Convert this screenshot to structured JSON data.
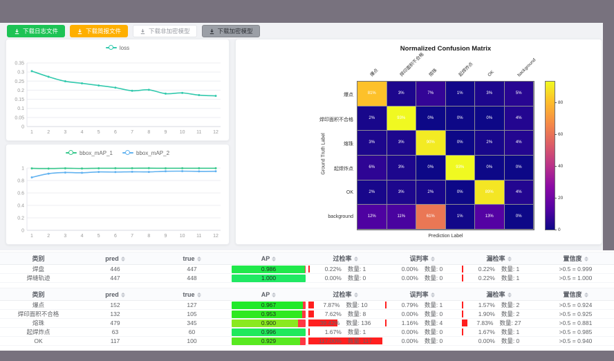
{
  "toolbar": {
    "buttons": [
      {
        "id": "download-log",
        "label": "下载日志文件",
        "style": "green"
      },
      {
        "id": "download-report",
        "label": "下载简报文件",
        "style": "orange"
      },
      {
        "id": "download-plain-model",
        "label": "下载非加密模型",
        "style": "white"
      },
      {
        "id": "download-encrypted-model",
        "label": "下载加密模型",
        "style": "gray"
      }
    ]
  },
  "chart_data": [
    {
      "type": "line",
      "title": "",
      "x": [
        1,
        2,
        3,
        4,
        5,
        6,
        7,
        8,
        9,
        10,
        11,
        12
      ],
      "series": [
        {
          "name": "loss",
          "values": [
            0.305,
            0.274,
            0.249,
            0.238,
            0.226,
            0.214,
            0.197,
            0.202,
            0.181,
            0.185,
            0.173,
            0.169
          ]
        }
      ],
      "colors": [
        "#32c9ad"
      ],
      "ylim": [
        0,
        0.35
      ],
      "yticks": [
        0,
        0.05,
        0.1,
        0.15,
        0.2,
        0.25,
        0.3,
        0.35
      ],
      "legend_position": "top",
      "grid": true
    },
    {
      "type": "line",
      "title": "",
      "x": [
        1,
        2,
        3,
        4,
        5,
        6,
        7,
        8,
        9,
        10,
        11,
        12
      ],
      "series": [
        {
          "name": "bbox_mAP_1",
          "values": [
            0.995,
            0.992,
            0.996,
            0.993,
            0.996,
            0.997,
            0.997,
            0.998,
            0.996,
            0.997,
            0.997,
            0.997
          ]
        },
        {
          "name": "bbox_mAP_2",
          "values": [
            0.85,
            0.91,
            0.928,
            0.924,
            0.938,
            0.936,
            0.94,
            0.938,
            0.948,
            0.95,
            0.947,
            0.948
          ]
        }
      ],
      "colors": [
        "#35c78b",
        "#61b2f0"
      ],
      "ylim": [
        0,
        1
      ],
      "yticks": [
        0,
        0.2,
        0.4,
        0.6,
        0.8,
        1
      ],
      "legend_position": "top",
      "grid": true
    },
    {
      "type": "heatmap",
      "title": "Normalized Confusion Matrix",
      "xlabel": "Prediction Label",
      "ylabel": "Ground Truth Label",
      "labels": [
        "爆点",
        "焊印面积不合格",
        "熔珠",
        "起焊炸点",
        "OK",
        "background"
      ],
      "matrix": [
        [
          81,
          3,
          7,
          1,
          3,
          5
        ],
        [
          2,
          93,
          0,
          0,
          0,
          4
        ],
        [
          3,
          3,
          90,
          0,
          2,
          4
        ],
        [
          6,
          3,
          0,
          93,
          0,
          0
        ],
        [
          2,
          3,
          2,
          0,
          89,
          4
        ],
        [
          12,
          11,
          61,
          1,
          13,
          0
        ]
      ],
      "vmax": 93,
      "colorbar_ticks": [
        0,
        20,
        40,
        60,
        80
      ],
      "colormap": "plasma",
      "cell_format": "percent"
    }
  ],
  "tables": {
    "quantity_label": "数量",
    "headers": [
      "类别",
      "pred",
      "true",
      "AP",
      "过检率",
      "误判率",
      "漏检率",
      "置信度"
    ],
    "sortable": [
      false,
      true,
      true,
      true,
      true,
      true,
      true,
      true
    ],
    "groups": [
      {
        "rows": [
          {
            "class": "焊盘",
            "pred": 446,
            "true": 447,
            "ap": 0.986,
            "over_pct": 0.22,
            "over_n": 1,
            "mis_pct": 0.0,
            "mis_n": 0,
            "miss_pct": 0.22,
            "miss_n": 1,
            "conf": ">0.5 = 0.999"
          },
          {
            "class": "焊缝轨迹",
            "pred": 447,
            "true": 448,
            "ap": 1.0,
            "over_pct": 0.0,
            "over_n": 0,
            "mis_pct": 0.0,
            "mis_n": 0,
            "miss_pct": 0.22,
            "miss_n": 1,
            "conf": ">0.5 = 1.000"
          }
        ]
      },
      {
        "rows": [
          {
            "class": "爆点",
            "pred": 152,
            "true": 127,
            "ap": 0.967,
            "over_pct": 7.87,
            "over_n": 10,
            "mis_pct": 0.79,
            "mis_n": 1,
            "miss_pct": 1.57,
            "miss_n": 2,
            "conf": ">0.5 = 0.924"
          },
          {
            "class": "焊印面积不合格",
            "pred": 132,
            "true": 105,
            "ap": 0.953,
            "over_pct": 7.62,
            "over_n": 8,
            "mis_pct": 0.0,
            "mis_n": 0,
            "miss_pct": 1.9,
            "miss_n": 2,
            "conf": ">0.5 = 0.925"
          },
          {
            "class": "熔珠",
            "pred": 479,
            "true": 345,
            "ap": 0.9,
            "over_pct": 39.42,
            "over_n": 136,
            "mis_pct": 1.16,
            "mis_n": 4,
            "miss_pct": 7.83,
            "miss_n": 27,
            "conf": ">0.5 = 0.881"
          },
          {
            "class": "起焊炸点",
            "pred": 63,
            "true": 60,
            "ap": 0.996,
            "over_pct": 1.67,
            "over_n": 1,
            "mis_pct": 0.0,
            "mis_n": 0,
            "miss_pct": 1.67,
            "miss_n": 1,
            "conf": ">0.5 = 0.985"
          },
          {
            "class": "OK",
            "pred": 117,
            "true": 100,
            "ap": 0.929,
            "over_pct": 117.0,
            "over_n": 117,
            "mis_pct": 0.0,
            "mis_n": 0,
            "miss_pct": 0.0,
            "miss_n": 0,
            "conf": ">0.5 = 0.940"
          }
        ]
      }
    ]
  },
  "colors": {
    "accent_green": "#1dc355",
    "accent_orange": "#feaf00",
    "bar_red": "#ff1f1f",
    "frame": "#78727e",
    "page_bg": "#f1f2f5"
  }
}
